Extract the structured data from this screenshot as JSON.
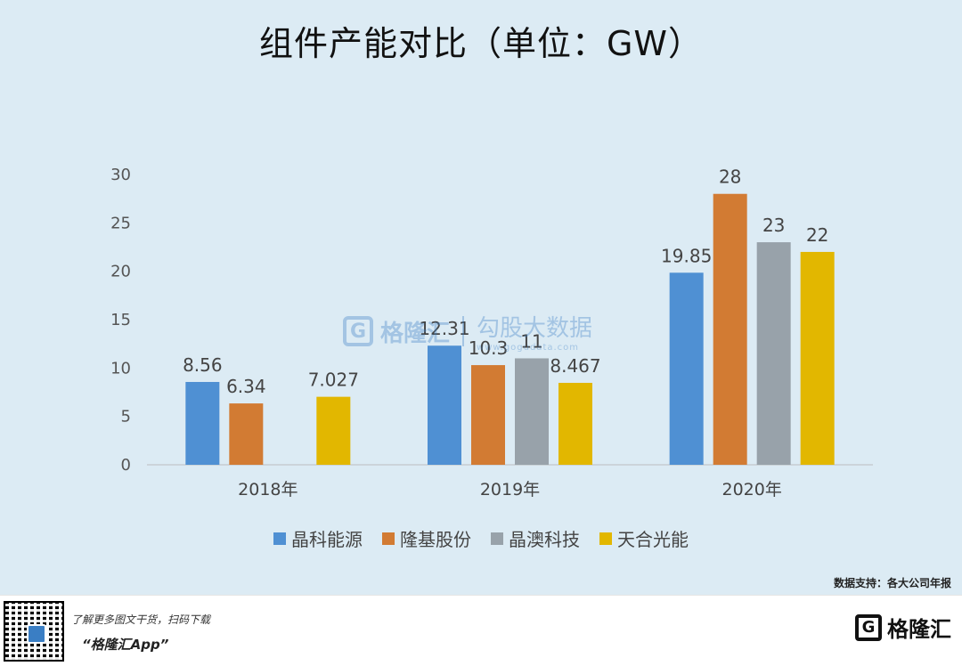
{
  "title": "组件产能对比（单位：GW）",
  "source": "数据支持：各大公司年报",
  "watermark": {
    "logo": "G",
    "brand": "格隆汇",
    "product": "勾股大数据",
    "url": "www.gogudata.com"
  },
  "footer": {
    "line1": "了解更多图文干货，扫码下载",
    "line2": "“格隆汇App”",
    "brand_logo": "G",
    "brand_name": "格隆汇"
  },
  "colors": {
    "晶科能源": "#4f90d3",
    "隆基股份": "#d27b33",
    "晶澳科技": "#98a2aa",
    "天合光能": "#e2b700"
  },
  "chart_data": {
    "type": "bar",
    "title": "组件产能对比（单位：GW）",
    "categories": [
      "2018年",
      "2019年",
      "2020年"
    ],
    "series": [
      {
        "name": "晶科能源",
        "values": [
          8.56,
          12.31,
          19.85
        ],
        "labels": [
          "8.56",
          "12.31",
          "19.85"
        ]
      },
      {
        "name": "隆基股份",
        "values": [
          6.34,
          10.3,
          28
        ],
        "labels": [
          "6.34",
          "10.3",
          "28"
        ]
      },
      {
        "name": "晶澳科技",
        "values": [
          null,
          11,
          23
        ],
        "labels": [
          "",
          "11",
          "23"
        ]
      },
      {
        "name": "天合光能",
        "values": [
          7.027,
          8.467,
          22
        ],
        "labels": [
          "7.027",
          "8.467",
          "22"
        ]
      }
    ],
    "yticks": [
      0,
      5,
      10,
      15,
      20,
      25,
      30
    ],
    "ylim": [
      0,
      30
    ],
    "grid": false,
    "legend": "bottom"
  }
}
